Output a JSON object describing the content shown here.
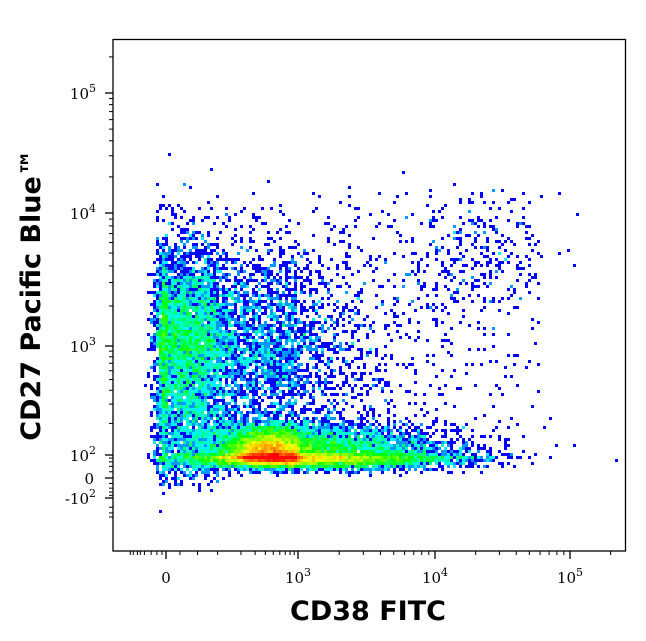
{
  "chart_data": {
    "type": "heatmap",
    "subtype": "flow-cytometry density dot plot",
    "xlabel": "CD38 FITC",
    "ylabel": "CD27 Pacific Blue™",
    "x_scale": "biexponential (logicle)",
    "y_scale": "biexponential (logicle)",
    "xlim": [
      -1000,
      200000
    ],
    "ylim": [
      -400,
      250000
    ],
    "x_ticks": [
      {
        "value": 0,
        "label": "0",
        "exp": ""
      },
      {
        "value": 1000,
        "label": "10",
        "exp": "3"
      },
      {
        "value": 10000,
        "label": "10",
        "exp": "4"
      },
      {
        "value": 100000,
        "label": "10",
        "exp": "5"
      }
    ],
    "y_ticks": [
      {
        "value": -100,
        "label": "-10",
        "exp": "2"
      },
      {
        "value": 0,
        "label": "0",
        "exp": ""
      },
      {
        "value": 100,
        "label": "10",
        "exp": "2"
      },
      {
        "value": 1000,
        "label": "10",
        "exp": "3"
      },
      {
        "value": 10000,
        "label": "10",
        "exp": "4"
      },
      {
        "value": 100000,
        "label": "10",
        "exp": "5"
      }
    ],
    "colormap": [
      "#0000ff",
      "#00ffff",
      "#00ff00",
      "#ffff00",
      "#ff0000"
    ],
    "populations": [
      {
        "description": "CD38- CD27+ vertical band",
        "x_center": 30,
        "y_center": 900
      },
      {
        "description": "CD27- horizontal band",
        "x_center": 900,
        "y_center": 90
      },
      {
        "description": "density peak",
        "x_center": 450,
        "y_center": 100
      },
      {
        "description": "CD38 mid CD27+ scatter",
        "x_center": 500,
        "y_center": 1000
      },
      {
        "description": "CD38 high CD27 high sparse",
        "x_center": 20000,
        "y_center": 5000
      }
    ],
    "grid": false,
    "legend": "none"
  }
}
